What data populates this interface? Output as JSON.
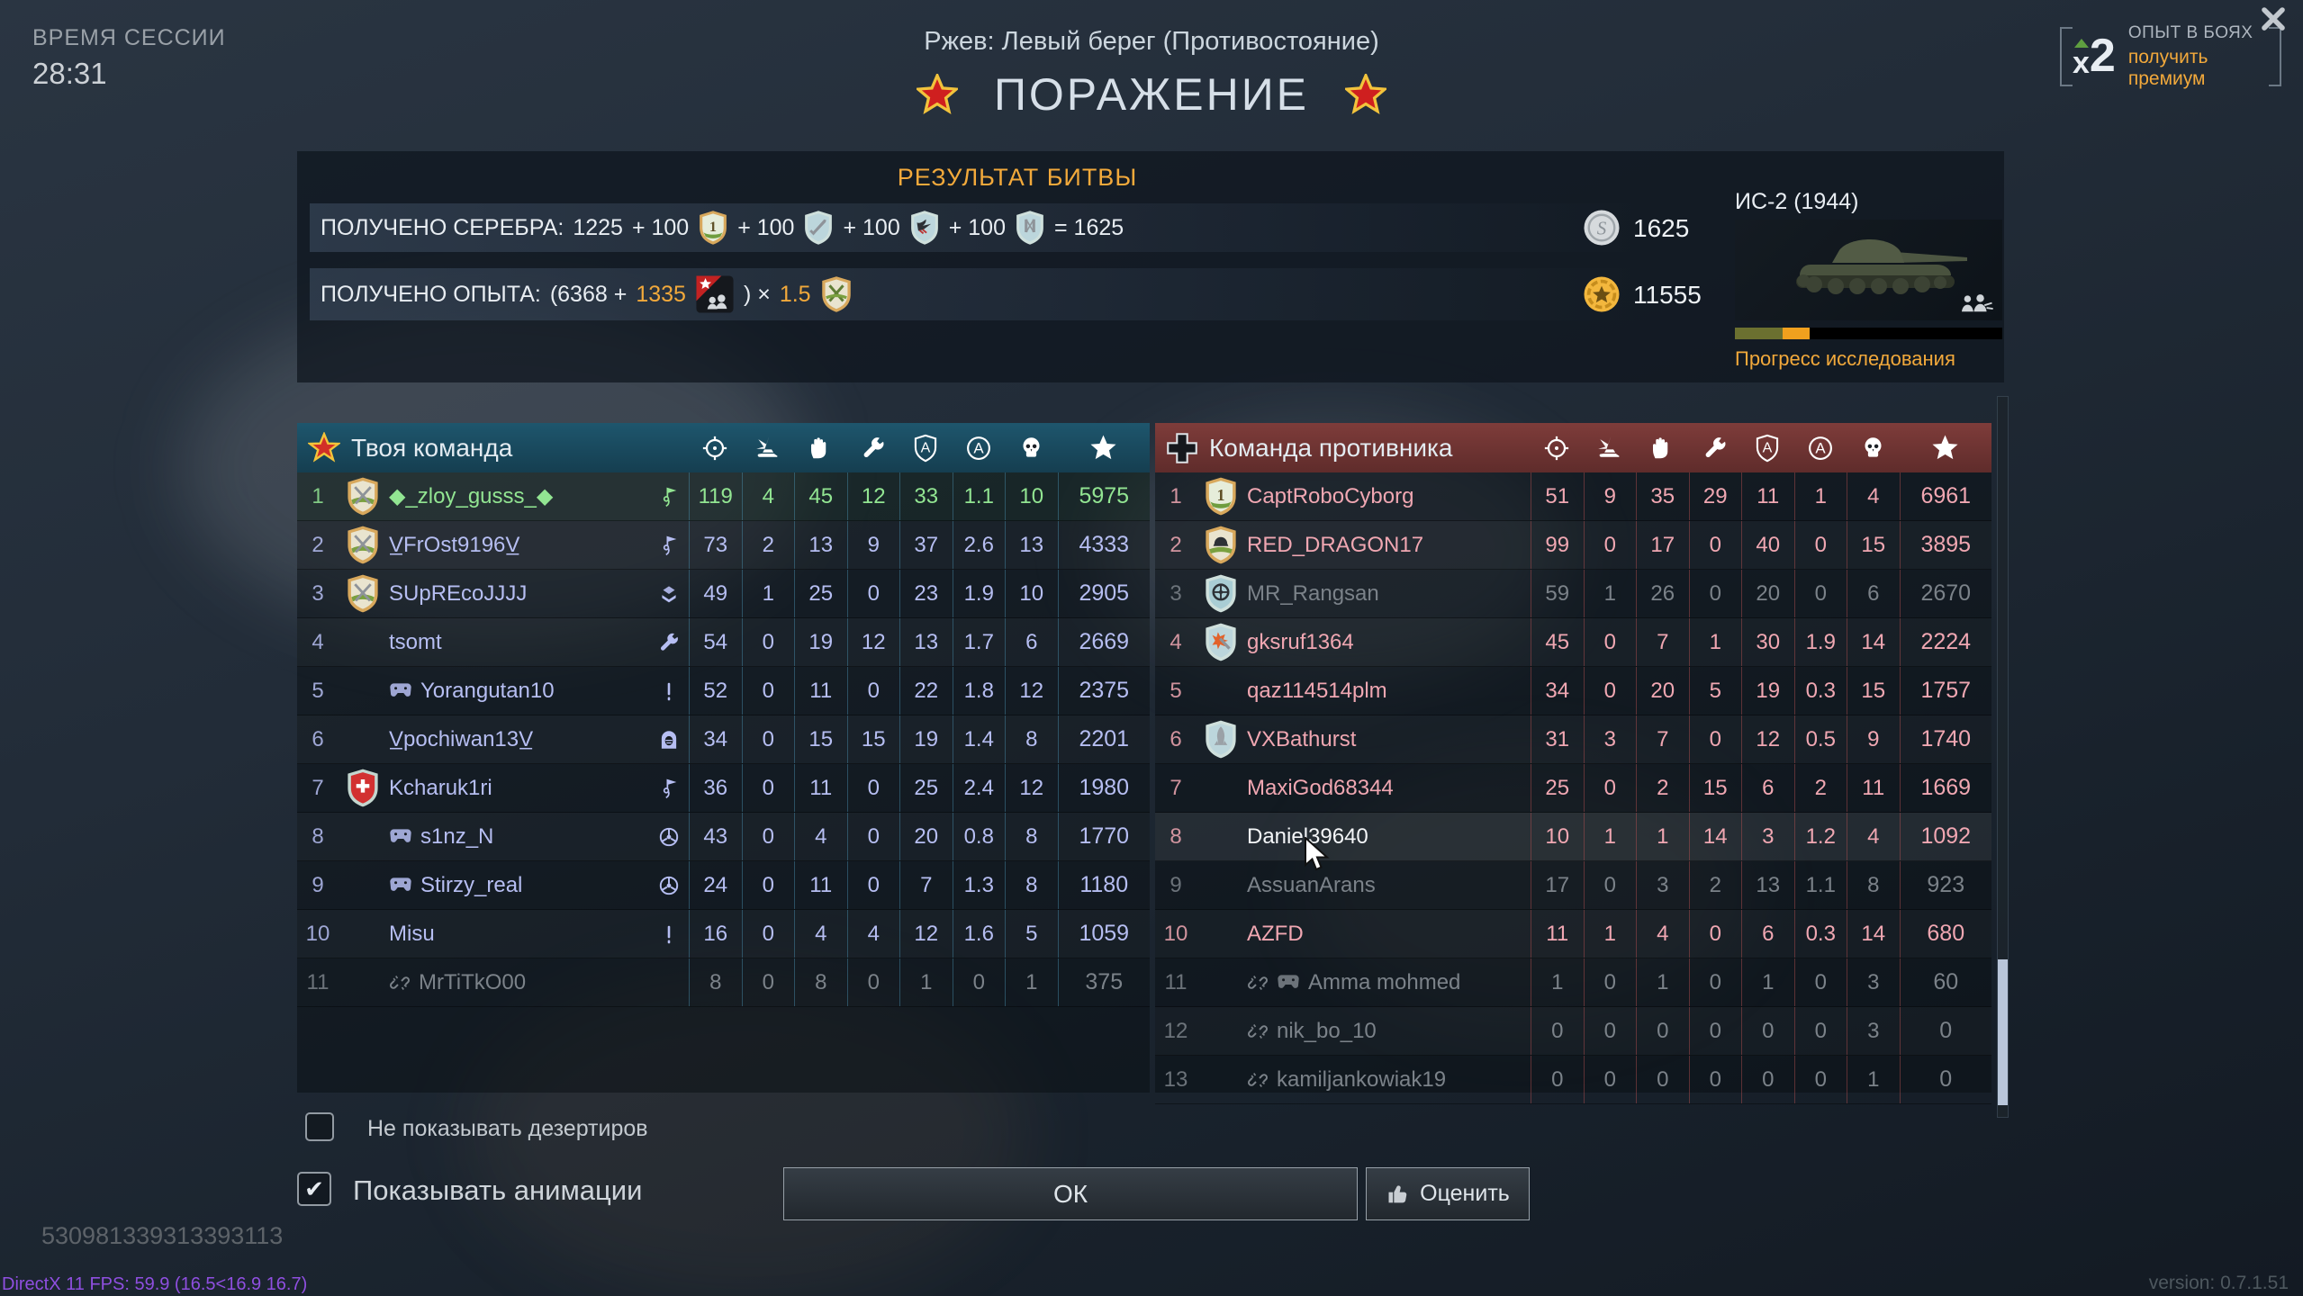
{
  "session": {
    "label": "ВРЕМЯ СЕССИИ",
    "time": "28:31"
  },
  "header": {
    "map_title": "Ржев: Левый берег (Противостояние)",
    "result": "ПОРАЖЕНИЕ"
  },
  "premium_offer": {
    "multiplier_x": "x",
    "multiplier_2": "2",
    "title": "ОПЫТ В БОЯХ",
    "action": "получить премиум"
  },
  "battle_result": {
    "title": "РЕЗУЛЬТАТ БИТВЫ",
    "silver": {
      "label": "ПОЛУЧЕНО СЕРЕБРА:",
      "base": "1225",
      "bonus_values": [
        "+ 100",
        "+ 100",
        "+ 100",
        "+ 100"
      ],
      "bonus_icons": [
        "medal-one-icon",
        "medal-sword-icon",
        "medal-eagle-icon",
        "medal-tools-icon"
      ],
      "total": "= 1625"
    },
    "xp": {
      "label": "ПОЛУЧЕНО ОПЫТА:",
      "formula_open": "(6368 +",
      "bonus": "1335",
      "bonus_icon": "platoon-icon",
      "formula_close": ") ×",
      "multiplier": "1.5",
      "multiplier_icon": "medal-mastery-icon"
    },
    "totals": {
      "silver": "1625",
      "xp": "11555"
    },
    "vehicle": {
      "name": "ИС-2 (1944)",
      "progress_label": "Прогресс исследования",
      "progress": {
        "researched_pct": 18,
        "gained_pct": 10
      }
    }
  },
  "stat_columns": [
    "crosshair-icon",
    "kill-icon",
    "hand-icon",
    "wrench-icon",
    "shield-a-icon",
    "circle-a-icon",
    "skull-icon",
    "star-icon"
  ],
  "left_team": {
    "title": "Твоя команда",
    "emblem": "soviet-star-icon",
    "rows": [
      {
        "rank": "1",
        "badge": "badge-swords-icon",
        "name": "◆_zloy_gusss_◆",
        "name_icons": [],
        "class_icon": "flag-icon",
        "stats": [
          "119",
          "4",
          "45",
          "12",
          "33",
          "1.1",
          "10"
        ],
        "score": "5975",
        "state": "self"
      },
      {
        "rank": "2",
        "badge": "badge-swords-icon",
        "name": "V̲FrOst9196V̲",
        "name_icons": [],
        "class_icon": "flag-icon",
        "stats": [
          "73",
          "2",
          "13",
          "9",
          "37",
          "2.6",
          "13"
        ],
        "score": "4333",
        "state": "normal"
      },
      {
        "rank": "3",
        "badge": "badge-swords-icon",
        "name": "SUpREcoJJJJ",
        "name_icons": [],
        "class_icon": "chevrons-icon",
        "stats": [
          "49",
          "1",
          "25",
          "0",
          "23",
          "1.9",
          "10"
        ],
        "score": "2905",
        "state": "normal"
      },
      {
        "rank": "4",
        "badge": "",
        "name": "tsomt",
        "name_icons": [],
        "class_icon": "wrench-small-icon",
        "stats": [
          "54",
          "0",
          "19",
          "12",
          "13",
          "1.7",
          "6"
        ],
        "score": "2669",
        "state": "normal"
      },
      {
        "rank": "5",
        "badge": "",
        "name": "Yorangutan10",
        "name_icons": [
          "gamepad-icon"
        ],
        "class_icon": "bar-icon",
        "stats": [
          "52",
          "0",
          "11",
          "0",
          "22",
          "1.8",
          "12"
        ],
        "score": "2375",
        "state": "normal"
      },
      {
        "rank": "6",
        "badge": "",
        "name": "V̲pochiwan13V̲",
        "name_icons": [],
        "class_icon": "helmet-icon",
        "stats": [
          "34",
          "0",
          "15",
          "15",
          "19",
          "1.4",
          "8"
        ],
        "score": "2201",
        "state": "normal"
      },
      {
        "rank": "7",
        "badge": "badge-swiss-icon",
        "name": "Kcharuk1ri",
        "name_icons": [],
        "class_icon": "flag-icon",
        "stats": [
          "36",
          "0",
          "11",
          "0",
          "25",
          "2.4",
          "12"
        ],
        "score": "1980",
        "state": "normal"
      },
      {
        "rank": "8",
        "badge": "",
        "name": "s1nz_N",
        "name_icons": [
          "gamepad-icon"
        ],
        "class_icon": "wheel-icon",
        "stats": [
          "43",
          "0",
          "4",
          "0",
          "20",
          "0.8",
          "8"
        ],
        "score": "1770",
        "state": "normal"
      },
      {
        "rank": "9",
        "badge": "",
        "name": "Stirzy_real",
        "name_icons": [
          "gamepad-icon"
        ],
        "class_icon": "wheel-icon",
        "stats": [
          "24",
          "0",
          "11",
          "0",
          "7",
          "1.3",
          "8"
        ],
        "score": "1180",
        "state": "normal"
      },
      {
        "rank": "10",
        "badge": "",
        "name": "Misu",
        "name_icons": [],
        "class_icon": "bar-icon",
        "stats": [
          "16",
          "0",
          "4",
          "4",
          "12",
          "1.6",
          "5"
        ],
        "score": "1059",
        "state": "normal"
      },
      {
        "rank": "11",
        "badge": "",
        "name": "MrTiTkO00",
        "name_icons": [
          "disconnect-icon"
        ],
        "class_icon": "",
        "stats": [
          "8",
          "0",
          "8",
          "0",
          "1",
          "0",
          "1"
        ],
        "score": "375",
        "state": "dead"
      }
    ]
  },
  "right_team": {
    "title": "Команда противника",
    "emblem": "german-cross-icon",
    "rows": [
      {
        "rank": "1",
        "badge": "badge-one-icon",
        "name": "CaptRoboCyborg",
        "name_icons": [],
        "class_icon": "",
        "stats": [
          "51",
          "9",
          "35",
          "29",
          "11",
          "1",
          "4"
        ],
        "score": "6961",
        "state": "normal"
      },
      {
        "rank": "2",
        "badge": "badge-helmet-icon",
        "name": "RED_DRAGON17",
        "name_icons": [],
        "class_icon": "",
        "stats": [
          "99",
          "0",
          "17",
          "0",
          "40",
          "0",
          "15"
        ],
        "score": "3895",
        "state": "normal"
      },
      {
        "rank": "3",
        "badge": "badge-wheel-icon",
        "name": "MR_Rangsan",
        "name_icons": [],
        "class_icon": "",
        "stats": [
          "59",
          "1",
          "26",
          "0",
          "20",
          "0",
          "6"
        ],
        "score": "2670",
        "state": "dead"
      },
      {
        "rank": "4",
        "badge": "badge-boom-icon",
        "name": "gksruf1364",
        "name_icons": [],
        "class_icon": "",
        "stats": [
          "45",
          "0",
          "7",
          "1",
          "30",
          "1.9",
          "14"
        ],
        "score": "2224",
        "state": "normal"
      },
      {
        "rank": "5",
        "badge": "",
        "name": "qaz114514plm",
        "name_icons": [],
        "class_icon": "",
        "stats": [
          "34",
          "0",
          "20",
          "5",
          "19",
          "0.3",
          "15"
        ],
        "score": "1757",
        "state": "normal"
      },
      {
        "rank": "6",
        "badge": "badge-rocket-icon",
        "name": "VXBathurst",
        "name_icons": [],
        "class_icon": "",
        "stats": [
          "31",
          "3",
          "7",
          "0",
          "12",
          "0.5",
          "9"
        ],
        "score": "1740",
        "state": "normal"
      },
      {
        "rank": "7",
        "badge": "",
        "name": "MaxiGod68344",
        "name_icons": [],
        "class_icon": "",
        "stats": [
          "25",
          "0",
          "2",
          "15",
          "6",
          "2",
          "11"
        ],
        "score": "1669",
        "state": "normal"
      },
      {
        "rank": "8",
        "badge": "",
        "name": "Daniel39640",
        "name_icons": [],
        "class_icon": "",
        "stats": [
          "10",
          "1",
          "1",
          "14",
          "3",
          "1.2",
          "4"
        ],
        "score": "1092",
        "state": "hover"
      },
      {
        "rank": "9",
        "badge": "",
        "name": "AssuanArans",
        "name_icons": [],
        "class_icon": "",
        "stats": [
          "17",
          "0",
          "3",
          "2",
          "13",
          "1.1",
          "8"
        ],
        "score": "923",
        "state": "dead"
      },
      {
        "rank": "10",
        "badge": "",
        "name": "AZFD",
        "name_icons": [],
        "class_icon": "",
        "stats": [
          "11",
          "1",
          "4",
          "0",
          "6",
          "0.3",
          "14"
        ],
        "score": "680",
        "state": "normal"
      },
      {
        "rank": "11",
        "badge": "",
        "name": "Amma mohmed",
        "name_icons": [
          "disconnect-icon",
          "gamepad-icon"
        ],
        "class_icon": "",
        "stats": [
          "1",
          "0",
          "1",
          "0",
          "1",
          "0",
          "3"
        ],
        "score": "60",
        "state": "dead"
      },
      {
        "rank": "12",
        "badge": "",
        "name": "nik_bo_10",
        "name_icons": [
          "disconnect-icon"
        ],
        "class_icon": "",
        "stats": [
          "0",
          "0",
          "0",
          "0",
          "0",
          "0",
          "3"
        ],
        "score": "0",
        "state": "dead"
      },
      {
        "rank": "13",
        "badge": "",
        "name": "kamiljankowiak19",
        "name_icons": [
          "disconnect-icon"
        ],
        "class_icon": "",
        "stats": [
          "0",
          "0",
          "0",
          "0",
          "0",
          "0",
          "1"
        ],
        "score": "0",
        "state": "dead"
      }
    ]
  },
  "footer": {
    "hide_deserters": {
      "label": "Не показывать дезертиров",
      "checked": false
    },
    "show_animations": {
      "label": "Показывать анимации",
      "checked": true
    },
    "ok_label": "ОК",
    "rate_label": "Оценить",
    "replay_id": "530981339313393113",
    "fps_info": "DirectX 11 FPS: 59.9 (16.5<16.9 16.7)",
    "version": "version: 0.7.1.51"
  },
  "colors": {
    "accent_orange": "#f2a93b",
    "ally": "#b6bef2",
    "ally_self": "#92e592",
    "enemy": "#f0a7b2",
    "dead": "#7b8289"
  }
}
